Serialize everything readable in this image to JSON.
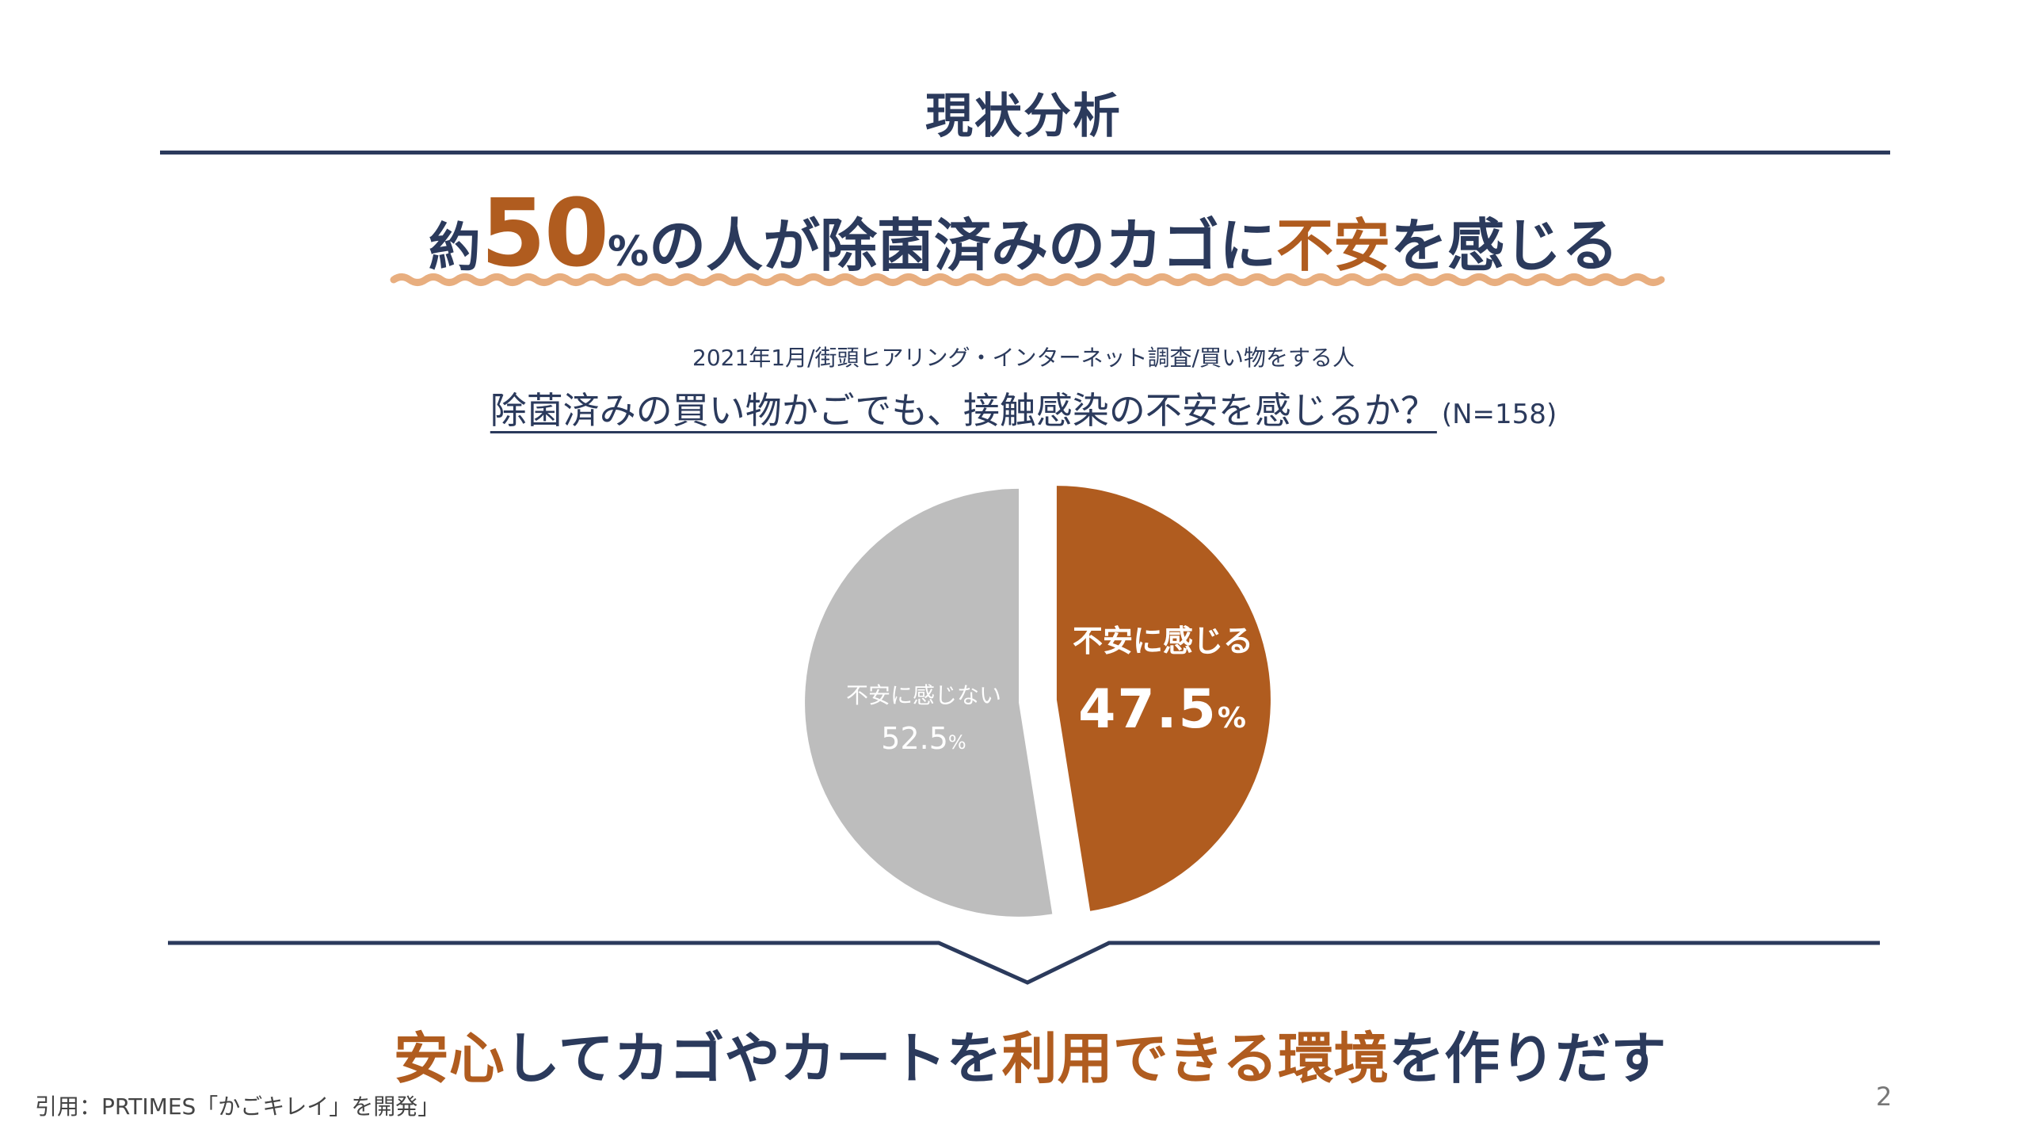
{
  "slide": {
    "title": "現状分析",
    "headline": {
      "prefix": "約",
      "number": "50",
      "percent": "%",
      "mid": "の人が除菌済みのカゴに",
      "accent": "不安",
      "suffix": "を感じる"
    },
    "source": "2021年1月/街頭ヒアリング・インターネット調査/買い物をする人",
    "question": "除菌済みの買い物かごでも、接触感染の不安を感じるか？",
    "sample": "(N=158)",
    "bottom_message": [
      {
        "text": "安心",
        "accent": true
      },
      {
        "text": "してカゴやカートを",
        "accent": false
      },
      {
        "text": "利用できる環境",
        "accent": true
      },
      {
        "text": "を作りだす",
        "accent": false
      }
    ],
    "citation": "引用：PRTIMES「かごキレイ」を開発」",
    "page_number": "2"
  },
  "colors": {
    "navy": "#2b3a5c",
    "accent": "#b05c1f",
    "wave": "#e8ae7f",
    "gray_slice": "#bdbdbd"
  },
  "chart_data": {
    "type": "pie",
    "start": "12 o'clock",
    "direction": "clockwise",
    "exploded": true,
    "slices": [
      {
        "label": "不安に感じる",
        "value": 47.5,
        "value_text": "47.5",
        "unit": "%",
        "color": "#b05c1f"
      },
      {
        "label": "不安に感じない",
        "value": 52.5,
        "value_text": "52.5",
        "unit": "%",
        "color": "#bdbdbd"
      }
    ]
  }
}
